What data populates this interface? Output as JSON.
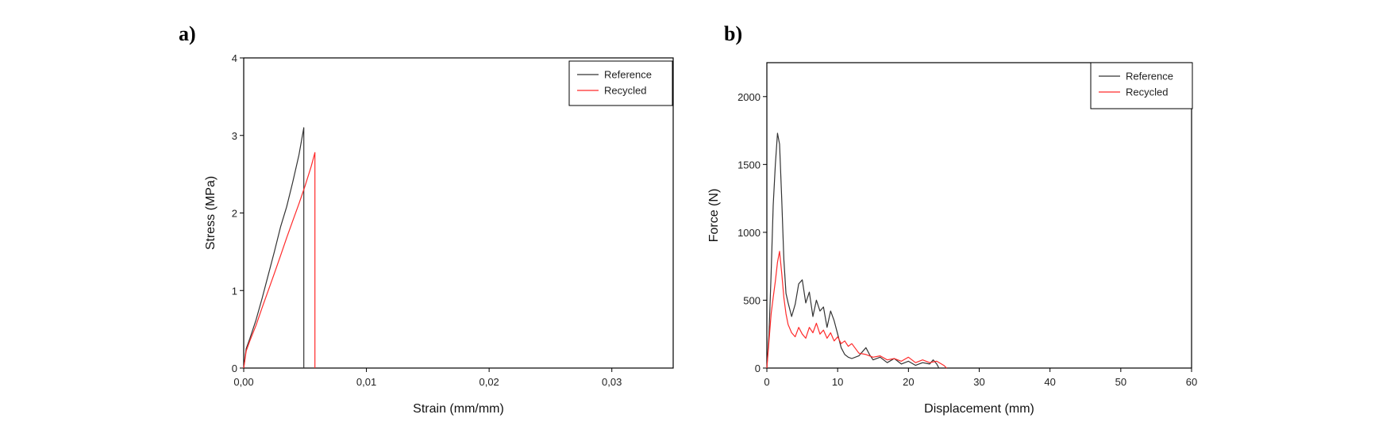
{
  "figure": {
    "panel_a_label": "a)",
    "panel_b_label": "b)"
  },
  "colors": {
    "reference": "#333333",
    "recycled": "#ff2a2a",
    "frame": "#000000"
  },
  "chart_data": [
    {
      "type": "line",
      "panel": "a)",
      "title": "",
      "xlabel": "Strain (mm/mm)",
      "ylabel": "Stress (MPa)",
      "xlim": [
        0,
        0.035
      ],
      "ylim": [
        0,
        4
      ],
      "xticks": [
        0,
        0.01,
        0.02,
        0.03
      ],
      "xtick_labels": [
        "0,00",
        "0,01",
        "0,02",
        "0,03"
      ],
      "yticks": [
        0,
        1,
        2,
        3,
        4
      ],
      "ytick_labels": [
        "0",
        "1",
        "2",
        "3",
        "4"
      ],
      "grid": false,
      "legend_position": "top-right",
      "series": [
        {
          "name": "Reference",
          "color": "#333333",
          "x": [
            0,
            0.0002,
            0.0005,
            0.001,
            0.0015,
            0.002,
            0.0025,
            0.003,
            0.0035,
            0.004,
            0.0045,
            0.0049,
            0.0049
          ],
          "y": [
            0,
            0.25,
            0.38,
            0.62,
            0.9,
            1.2,
            1.5,
            1.82,
            2.08,
            2.4,
            2.75,
            3.1,
            0
          ]
        },
        {
          "name": "Recycled",
          "color": "#ff2a2a",
          "x": [
            0,
            0.0002,
            0.0005,
            0.001,
            0.0015,
            0.002,
            0.0025,
            0.003,
            0.0035,
            0.004,
            0.0045,
            0.005,
            0.0055,
            0.0058,
            0.0058
          ],
          "y": [
            0,
            0.22,
            0.35,
            0.55,
            0.78,
            1.0,
            1.22,
            1.45,
            1.68,
            1.9,
            2.12,
            2.35,
            2.6,
            2.78,
            0
          ]
        }
      ]
    },
    {
      "type": "line",
      "panel": "b)",
      "title": "",
      "xlabel": "Displacement (mm)",
      "ylabel": "Force (N)",
      "xlim": [
        0,
        60
      ],
      "ylim": [
        0,
        2250
      ],
      "xticks": [
        0,
        10,
        20,
        30,
        40,
        50,
        60
      ],
      "xtick_labels": [
        "0",
        "10",
        "20",
        "30",
        "40",
        "50",
        "60"
      ],
      "yticks": [
        0,
        500,
        1000,
        1500,
        2000
      ],
      "ytick_labels": [
        "0",
        "500",
        "1000",
        "1500",
        "2000"
      ],
      "grid": false,
      "legend_position": "top-right",
      "series": [
        {
          "name": "Reference",
          "color": "#333333",
          "x": [
            0,
            0.3,
            0.6,
            0.9,
            1.2,
            1.5,
            1.8,
            2.1,
            2.4,
            2.7,
            3.0,
            3.5,
            4.0,
            4.5,
            5.0,
            5.5,
            6.0,
            6.5,
            7.0,
            7.5,
            8.0,
            8.5,
            9.0,
            9.5,
            10.0,
            10.5,
            11.0,
            11.5,
            12.0,
            13.0,
            14.0,
            14.5,
            15.0,
            16.0,
            17.0,
            18.0,
            19.0,
            20.0,
            21.0,
            22.0,
            23.0,
            23.5,
            24.0,
            24.3
          ],
          "y": [
            0,
            250,
            700,
            1200,
            1500,
            1730,
            1650,
            1250,
            800,
            550,
            480,
            380,
            470,
            620,
            650,
            480,
            560,
            380,
            500,
            420,
            450,
            300,
            420,
            350,
            250,
            150,
            100,
            80,
            70,
            90,
            150,
            100,
            60,
            80,
            40,
            70,
            30,
            50,
            20,
            40,
            30,
            60,
            30,
            0
          ]
        },
        {
          "name": "Recycled",
          "color": "#ff2a2a",
          "x": [
            0,
            0.3,
            0.6,
            0.9,
            1.2,
            1.5,
            1.8,
            2.1,
            2.4,
            2.7,
            3.0,
            3.5,
            4.0,
            4.5,
            5.0,
            5.5,
            6.0,
            6.5,
            7.0,
            7.5,
            8.0,
            8.5,
            9.0,
            9.5,
            10.0,
            10.5,
            11.0,
            11.5,
            12.0,
            13.0,
            14.0,
            15.0,
            16.0,
            17.0,
            18.0,
            19.0,
            20.0,
            21.0,
            22.0,
            23.0,
            24.0,
            25.0,
            25.4
          ],
          "y": [
            0,
            200,
            400,
            520,
            640,
            780,
            860,
            700,
            520,
            400,
            320,
            260,
            230,
            300,
            250,
            220,
            300,
            260,
            330,
            250,
            280,
            220,
            260,
            200,
            230,
            180,
            200,
            160,
            180,
            110,
            100,
            80,
            90,
            60,
            70,
            50,
            80,
            40,
            60,
            40,
            50,
            20,
            0
          ]
        }
      ]
    }
  ]
}
